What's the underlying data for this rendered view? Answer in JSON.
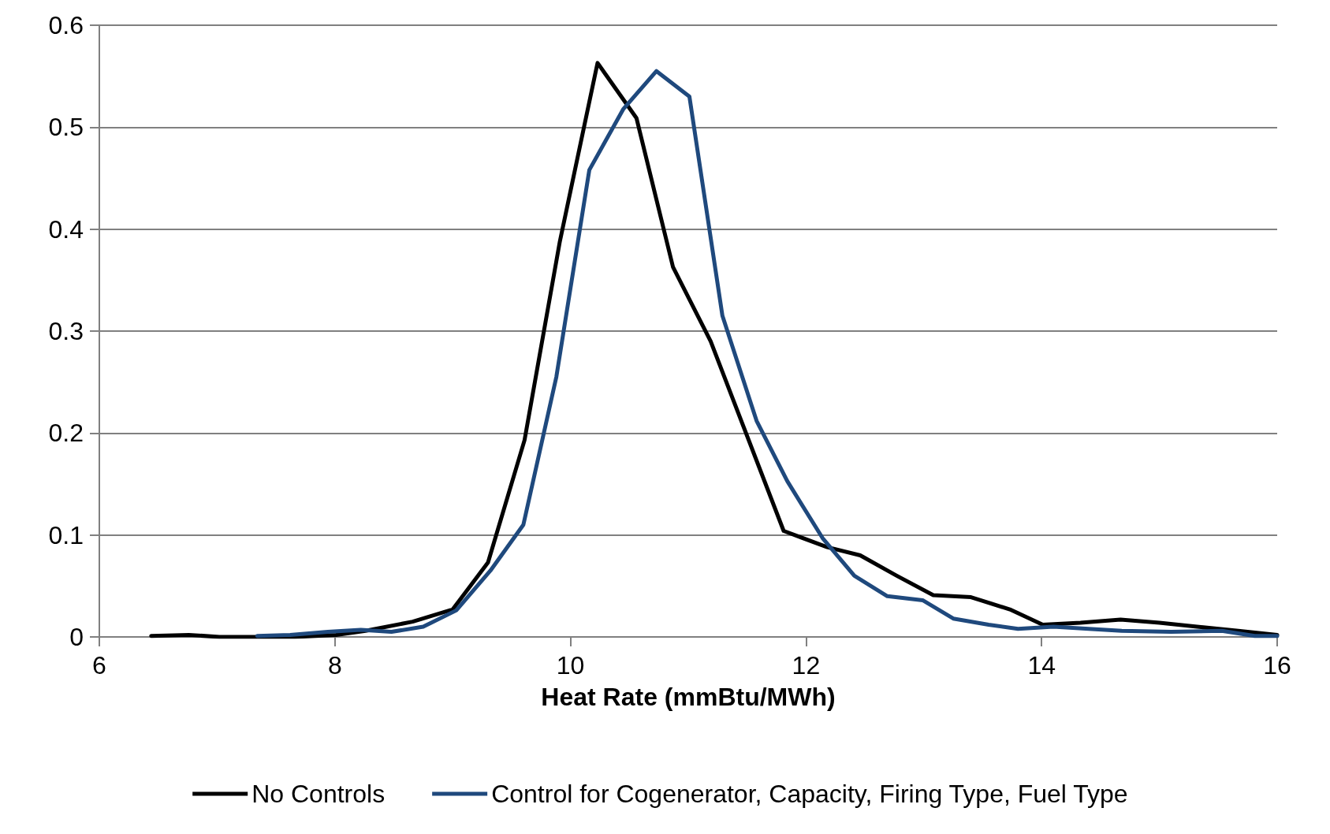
{
  "chart_data": {
    "type": "line",
    "xlabel": "Heat Rate (mmBtu/MWh)",
    "xlim": [
      6,
      16
    ],
    "xticks": [
      6,
      8,
      10,
      12,
      14,
      16
    ],
    "ylim": [
      0,
      0.6
    ],
    "yticks": [
      0,
      0.1,
      0.2,
      0.3,
      0.4,
      0.5,
      0.6
    ],
    "grid": "y",
    "legend": "bottom",
    "marker": "none",
    "line_style": "solid",
    "series": [
      {
        "name": "No Controls",
        "color": "#000000",
        "x": [
          6.44,
          6.76,
          7.02,
          7.34,
          7.66,
          8.01,
          8.26,
          8.66,
          9.0,
          9.3,
          9.61,
          9.91,
          10.23,
          10.56,
          10.87,
          11.19,
          11.81,
          12.18,
          12.46,
          12.77,
          13.08,
          13.4,
          13.73,
          14.01,
          14.33,
          14.67,
          15.0,
          15.32,
          15.67,
          16.0
        ],
        "values": [
          0.001,
          0.002,
          0,
          0,
          0,
          0.002,
          0.006,
          0.015,
          0.027,
          0.073,
          0.193,
          0.388,
          0.563,
          0.509,
          0.363,
          0.29,
          0.104,
          0.088,
          0.08,
          0.06,
          0.041,
          0.039,
          0.027,
          0.012,
          0.014,
          0.017,
          0.014,
          0.01,
          0.006,
          0.002
        ]
      },
      {
        "name": "Control for Cogenerator, Capacity, Firing Type, Fuel Type",
        "color": "#1f497d",
        "x": [
          7.34,
          7.62,
          7.94,
          8.22,
          8.48,
          8.75,
          9.03,
          9.32,
          9.6,
          9.88,
          10.16,
          10.45,
          10.73,
          11.01,
          11.29,
          11.58,
          11.84,
          12.14,
          12.41,
          12.69,
          12.99,
          13.25,
          13.55,
          13.8,
          14.1,
          14.4,
          14.68,
          15.1,
          15.53,
          15.81,
          16.0
        ],
        "values": [
          0.001,
          0.002,
          0.005,
          0.007,
          0.005,
          0.01,
          0.026,
          0.065,
          0.11,
          0.255,
          0.458,
          0.518,
          0.555,
          0.53,
          0.315,
          0.212,
          0.153,
          0.097,
          0.06,
          0.04,
          0.036,
          0.018,
          0.012,
          0.008,
          0.01,
          0.008,
          0.006,
          0.005,
          0.006,
          0.001,
          0.001
        ]
      }
    ]
  }
}
